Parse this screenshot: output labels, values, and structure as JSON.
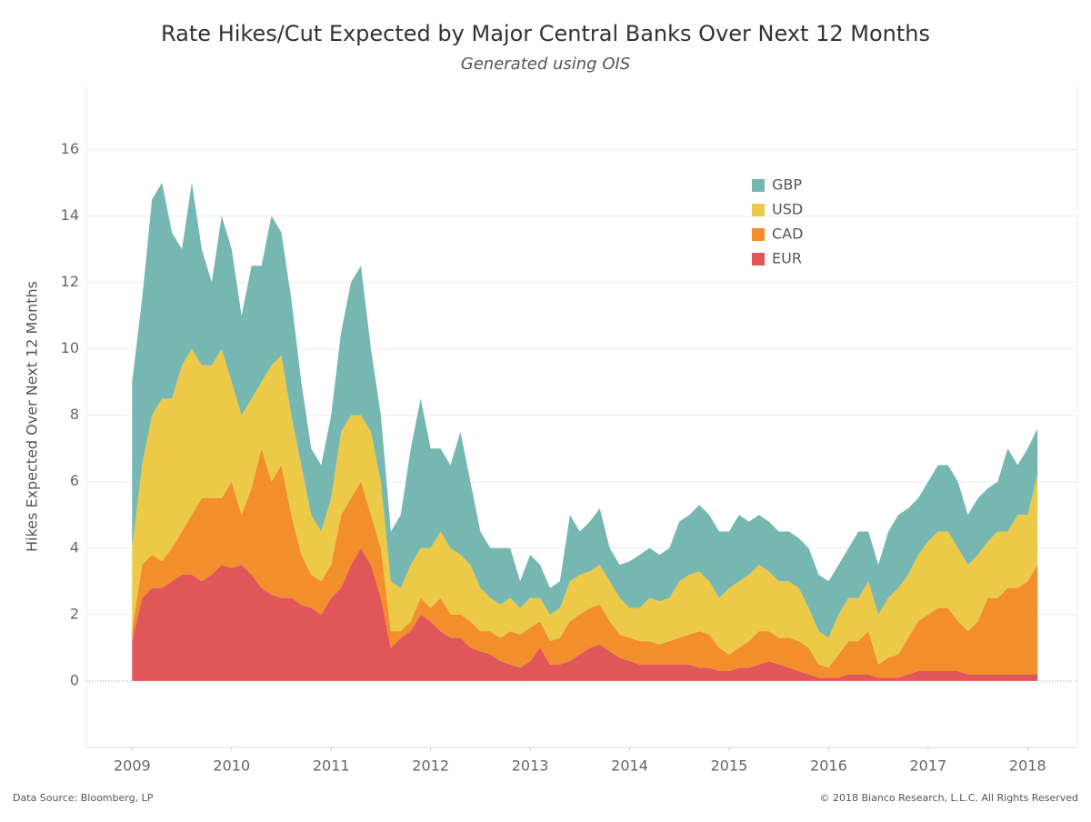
{
  "chart_data": {
    "type": "stacked_area",
    "title": "Rate Hikes/Cut Expected by Major Central Banks Over Next 12 Months",
    "subtitle": "Generated using OIS",
    "y_label": "Hikes Expected Over Next 12 Months",
    "source": "Data Source: Bloomberg, LP",
    "copyright": "© 2018 Bianco Research, L.L.C. All Rights Reserved",
    "xlim": [
      2008.54,
      2018.5
    ],
    "xticks": [
      2009,
      2010,
      2011,
      2012,
      2013,
      2014,
      2015,
      2016,
      2017,
      2018
    ],
    "ylim": [
      -2,
      17.9
    ],
    "yticks": [
      0,
      2,
      4,
      6,
      8,
      10,
      12,
      14,
      16
    ],
    "grid": true,
    "legend": "upper right",
    "x": [
      2009.0,
      2009.1,
      2009.2,
      2009.3,
      2009.4,
      2009.5,
      2009.6,
      2009.7,
      2009.8,
      2009.9,
      2010.0,
      2010.1,
      2010.2,
      2010.3,
      2010.4,
      2010.5,
      2010.6,
      2010.7,
      2010.8,
      2010.9,
      2011.0,
      2011.1,
      2011.2,
      2011.3,
      2011.4,
      2011.5,
      2011.6,
      2011.7,
      2011.8,
      2011.9,
      2012.0,
      2012.1,
      2012.2,
      2012.3,
      2012.4,
      2012.5,
      2012.6,
      2012.7,
      2012.8,
      2012.9,
      2013.0,
      2013.1,
      2013.2,
      2013.3,
      2013.4,
      2013.5,
      2013.6,
      2013.7,
      2013.8,
      2013.9,
      2014.0,
      2014.1,
      2014.2,
      2014.3,
      2014.4,
      2014.5,
      2014.6,
      2014.7,
      2014.8,
      2014.9,
      2015.0,
      2015.1,
      2015.2,
      2015.3,
      2015.4,
      2015.5,
      2015.6,
      2015.7,
      2015.8,
      2015.9,
      2016.0,
      2016.1,
      2016.2,
      2016.3,
      2016.4,
      2016.5,
      2016.6,
      2016.7,
      2016.8,
      2016.9,
      2017.0,
      2017.1,
      2017.2,
      2017.3,
      2017.4,
      2017.5,
      2017.6,
      2017.7,
      2017.8,
      2017.9,
      2018.0,
      2018.1
    ],
    "series": [
      {
        "name": "GBP",
        "color": "#76b7b2",
        "values": [
          5.0,
          5.0,
          6.5,
          6.5,
          5.0,
          3.5,
          5.0,
          3.5,
          2.5,
          4.0,
          4.0,
          3.0,
          4.0,
          3.5,
          4.5,
          3.7,
          3.5,
          2.5,
          2.0,
          2.0,
          2.5,
          3.0,
          4.0,
          4.5,
          2.5,
          2.0,
          1.5,
          2.2,
          3.5,
          4.5,
          3.0,
          2.5,
          2.5,
          3.7,
          2.5,
          1.7,
          1.5,
          1.7,
          1.5,
          0.8,
          1.3,
          1.0,
          0.8,
          0.8,
          2.0,
          1.3,
          1.5,
          1.7,
          1.0,
          1.0,
          1.4,
          1.6,
          1.5,
          1.4,
          1.5,
          1.8,
          1.8,
          2.0,
          2.0,
          2.0,
          1.7,
          2.0,
          1.6,
          1.5,
          1.5,
          1.5,
          1.5,
          1.5,
          1.8,
          1.7,
          1.7,
          1.5,
          1.5,
          2.0,
          1.5,
          1.5,
          2.0,
          2.2,
          2.0,
          1.7,
          1.8,
          2.0,
          2.0,
          2.0,
          1.5,
          1.7,
          1.6,
          1.5,
          2.5,
          1.5,
          2.0,
          1.4
        ]
      },
      {
        "name": "USD",
        "color": "#edc948",
        "values": [
          2.5,
          3.0,
          4.2,
          4.9,
          4.5,
          5.0,
          5.0,
          4.0,
          4.0,
          4.5,
          3.0,
          3.0,
          2.7,
          2.0,
          3.5,
          3.3,
          3.0,
          2.7,
          1.8,
          1.5,
          2.0,
          2.5,
          2.5,
          2.0,
          2.5,
          2.0,
          1.5,
          1.3,
          1.7,
          1.5,
          1.8,
          2.0,
          2.0,
          1.8,
          1.7,
          1.3,
          1.0,
          1.0,
          1.0,
          0.8,
          0.9,
          0.7,
          0.8,
          0.9,
          1.2,
          1.2,
          1.1,
          1.2,
          1.2,
          1.1,
          0.9,
          1.0,
          1.3,
          1.3,
          1.3,
          1.7,
          1.8,
          1.8,
          1.6,
          1.5,
          2.0,
          2.0,
          2.0,
          2.0,
          1.8,
          1.7,
          1.7,
          1.6,
          1.2,
          1.0,
          0.9,
          1.2,
          1.3,
          1.3,
          1.5,
          1.5,
          1.8,
          2.0,
          1.9,
          2.0,
          2.2,
          2.3,
          2.3,
          2.2,
          2.0,
          2.0,
          1.7,
          2.0,
          1.7,
          2.2,
          2.0,
          2.7
        ]
      },
      {
        "name": "CAD",
        "color": "#f28e2b",
        "values": [
          0.3,
          1.0,
          1.0,
          0.8,
          1.0,
          1.3,
          1.8,
          2.5,
          2.3,
          2.0,
          2.6,
          1.5,
          2.6,
          4.2,
          3.4,
          4.0,
          2.5,
          1.5,
          1.0,
          1.0,
          1.0,
          2.2,
          2.0,
          2.0,
          1.5,
          1.5,
          0.5,
          0.2,
          0.3,
          0.5,
          0.4,
          1.0,
          0.7,
          0.7,
          0.8,
          0.6,
          0.7,
          0.7,
          1.0,
          1.0,
          1.0,
          0.8,
          0.7,
          0.8,
          1.2,
          1.2,
          1.2,
          1.2,
          0.9,
          0.7,
          0.7,
          0.7,
          0.7,
          0.6,
          0.7,
          0.8,
          0.9,
          1.1,
          1.0,
          0.7,
          0.5,
          0.6,
          0.8,
          1.0,
          0.9,
          0.8,
          0.9,
          0.9,
          0.8,
          0.4,
          0.3,
          0.7,
          1.0,
          1.0,
          1.3,
          0.4,
          0.6,
          0.7,
          1.1,
          1.5,
          1.7,
          1.9,
          1.9,
          1.5,
          1.3,
          1.6,
          2.3,
          2.3,
          2.6,
          2.6,
          2.8,
          3.3
        ]
      },
      {
        "name": "EUR",
        "color": "#e15759",
        "values": [
          1.2,
          2.5,
          2.8,
          2.8,
          3.0,
          3.2,
          3.2,
          3.0,
          3.2,
          3.5,
          3.4,
          3.5,
          3.2,
          2.8,
          2.6,
          2.5,
          2.5,
          2.3,
          2.2,
          2.0,
          2.5,
          2.8,
          3.5,
          4.0,
          3.5,
          2.5,
          1.0,
          1.3,
          1.5,
          2.0,
          1.8,
          1.5,
          1.3,
          1.3,
          1.0,
          0.9,
          0.8,
          0.6,
          0.5,
          0.4,
          0.6,
          1.0,
          0.5,
          0.5,
          0.6,
          0.8,
          1.0,
          1.1,
          0.9,
          0.7,
          0.6,
          0.5,
          0.5,
          0.5,
          0.5,
          0.5,
          0.5,
          0.4,
          0.4,
          0.3,
          0.3,
          0.4,
          0.4,
          0.5,
          0.6,
          0.5,
          0.4,
          0.3,
          0.2,
          0.1,
          0.1,
          0.1,
          0.2,
          0.2,
          0.2,
          0.1,
          0.1,
          0.1,
          0.2,
          0.3,
          0.3,
          0.3,
          0.3,
          0.3,
          0.2,
          0.2,
          0.2,
          0.2,
          0.2,
          0.2,
          0.2,
          0.2
        ]
      }
    ]
  }
}
